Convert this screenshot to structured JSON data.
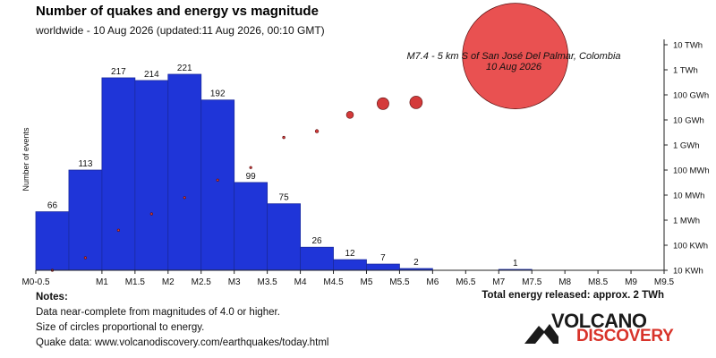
{
  "title": "Number of quakes and energy vs magnitude",
  "subtitle": "worldwide - 10 Aug 2026 (updated:11 Aug 2026, 00:10 GMT)",
  "chart_data": {
    "type": "bar",
    "categories": [
      "M0-0.5",
      "M1",
      "M1.5",
      "M2",
      "M2.5",
      "M3",
      "M3.5",
      "M4",
      "M4.5",
      "M5",
      "M5.5",
      "M6",
      "M6.5",
      "M7",
      "M7.5",
      "M8",
      "M8.5",
      "M9",
      "M9.5"
    ],
    "x_ticks": [
      0,
      1,
      1.5,
      2,
      2.5,
      3,
      3.5,
      4,
      4.5,
      5,
      5.5,
      6,
      6.5,
      7,
      7.5,
      8,
      8.5,
      9,
      9.5
    ],
    "bars": [
      {
        "x0": 0,
        "x1": 0.5,
        "count": 66
      },
      {
        "x0": 0.5,
        "x1": 1.0,
        "count": 113
      },
      {
        "x0": 1.0,
        "x1": 1.5,
        "count": 217
      },
      {
        "x0": 1.5,
        "x1": 2.0,
        "count": 214
      },
      {
        "x0": 2.0,
        "x1": 2.5,
        "count": 221
      },
      {
        "x0": 2.5,
        "x1": 3.0,
        "count": 192
      },
      {
        "x0": 3.0,
        "x1": 3.5,
        "count": 99
      },
      {
        "x0": 3.5,
        "x1": 4.0,
        "count": 75
      },
      {
        "x0": 4.0,
        "x1": 4.5,
        "count": 26
      },
      {
        "x0": 4.5,
        "x1": 5.0,
        "count": 12
      },
      {
        "x0": 5.0,
        "x1": 5.5,
        "count": 7
      },
      {
        "x0": 5.5,
        "x1": 6.0,
        "count": 2
      },
      {
        "x0": 7.0,
        "x1": 7.5,
        "count": 1
      }
    ],
    "ylabel": "Number of events",
    "ylim": [
      0,
      221
    ],
    "energy_axis": {
      "scale": "log",
      "tick_labels": [
        "10 KWh",
        "100 KWh",
        "1 MWh",
        "10 MWh",
        "100 MWh",
        "1 GWh",
        "10 GWh",
        "100 GWh",
        "1 TWh",
        "10 TWh"
      ],
      "range_log10_kwh": [
        1,
        10
      ]
    },
    "energy_points": [
      {
        "magnitude": 0.25,
        "log10_kwh": 1.0
      },
      {
        "magnitude": 0.75,
        "log10_kwh": 1.5
      },
      {
        "magnitude": 1.25,
        "log10_kwh": 2.6
      },
      {
        "magnitude": 1.75,
        "log10_kwh": 3.25
      },
      {
        "magnitude": 2.25,
        "log10_kwh": 3.9
      },
      {
        "magnitude": 2.75,
        "log10_kwh": 4.6
      },
      {
        "magnitude": 3.25,
        "log10_kwh": 5.1
      },
      {
        "magnitude": 3.75,
        "log10_kwh": 6.3
      },
      {
        "magnitude": 4.25,
        "log10_kwh": 6.55
      },
      {
        "magnitude": 4.75,
        "log10_kwh": 7.2
      },
      {
        "magnitude": 5.25,
        "log10_kwh": 7.65
      },
      {
        "magnitude": 5.75,
        "log10_kwh": 7.7
      },
      {
        "magnitude": 7.25,
        "log10_kwh": 9.55
      }
    ],
    "annotation": {
      "line1": "M7.4 - 5 km S of San José Del Palmar, Colombia",
      "line2": "10 Aug 2026"
    },
    "grid": false,
    "colors": {
      "bar": "#1f35d8",
      "bar_edge": "#1a2aa0",
      "circle": "#d43a3a",
      "big_circle": "#e84848"
    }
  },
  "notes": {
    "heading": "Notes:",
    "lines": [
      "Data near-complete from magnitudes of 4.0 or higher.",
      "Size of circles proportional to energy.",
      "Quake data: www.volcanodiscovery.com/earthquakes/today.html"
    ]
  },
  "total_energy": "Total energy released: approx. 2 TWh",
  "logo": {
    "word1": "VOLCANO",
    "word2": "DISCOVERY"
  }
}
